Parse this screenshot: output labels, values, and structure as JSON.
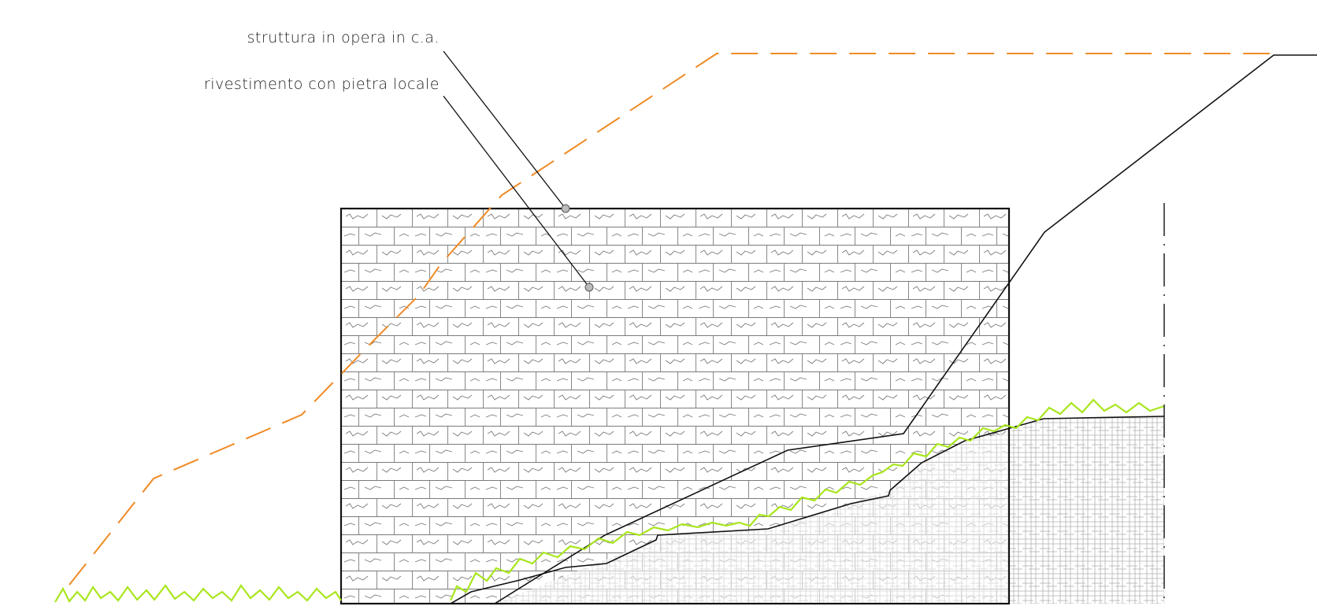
{
  "labels": {
    "structure": "struttura in opera in c.a.",
    "cladding": "rivestimento con pietra locale"
  },
  "colors": {
    "outline": "#111111",
    "stone_pattern": "#7a7a7a",
    "terrain_hatch": "#b0b0b0",
    "grass": "#a8e61d",
    "profile_dashed": "#f08a24",
    "leader_dot": "#bbbbbb"
  }
}
